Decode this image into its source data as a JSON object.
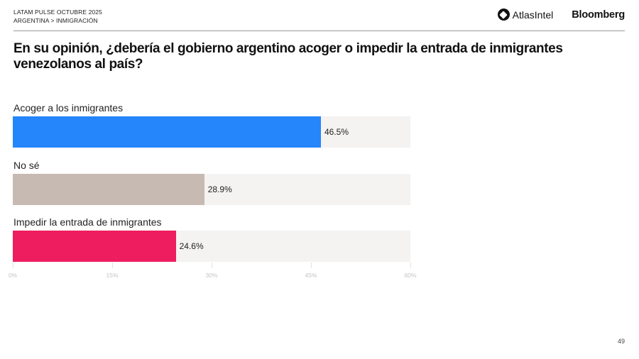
{
  "header": {
    "survey": "LATAM PULSE OCTUBRE 2025",
    "breadcrumb": "ARGENTINA > INMIGRACIÓN",
    "brand_atlas": "AtlasIntel",
    "brand_bloomberg": "Bloomberg"
  },
  "title": "En su opinión, ¿debería el gobierno argentino acoger o impedir la entrada de inmigrantes venezolanos al país?",
  "page_number": "49",
  "chart_data": {
    "type": "bar",
    "orientation": "horizontal",
    "title": "En su opinión, ¿debería el gobierno argentino acoger o impedir la entrada de inmigrantes venezolanos al país?",
    "categories": [
      "Acoger a los inmigrantes",
      "No sé",
      "Impedir la entrada de inmigrantes"
    ],
    "values": [
      46.5,
      28.9,
      24.6
    ],
    "value_labels": [
      "46.5%",
      "28.9%",
      "24.6%"
    ],
    "colors": [
      "#2585fb",
      "#c7bab3",
      "#ee1d5f"
    ],
    "track_color": "#f4f3f1",
    "xlabel": "",
    "ylabel": "",
    "xlim": [
      0,
      60
    ],
    "xticks": [
      0,
      15,
      30,
      45,
      60
    ],
    "xtick_labels": [
      "0%",
      "15%",
      "30%",
      "45%",
      "60%"
    ],
    "grid": false,
    "legend": null
  }
}
